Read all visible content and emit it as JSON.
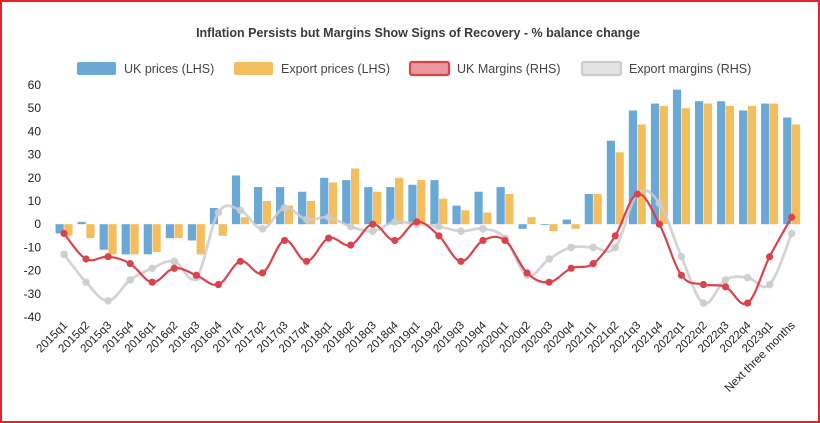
{
  "chart_data": {
    "type": "bar",
    "title": "Inflation Persists but Margins Show Signs of Recovery - % balance change",
    "categories": [
      "2015q1",
      "2015q2",
      "2015q3",
      "2015q4",
      "2016q1",
      "2016q2",
      "2016q3",
      "2016q4",
      "2017q1",
      "2017q2",
      "2017q3",
      "2017q4",
      "2018q1",
      "2018q2",
      "2018q3",
      "2018q4",
      "2019q1",
      "2019q2",
      "2019q3",
      "2019q4",
      "2020q1",
      "2020q2",
      "2020q3",
      "2020q4",
      "2021q1",
      "2021q2",
      "2021q3",
      "2021q4",
      "2022q1",
      "2022q2",
      "2022q3",
      "2022q4",
      "2023q1",
      "Next three months"
    ],
    "x_tick_labels": [
      "2015q1",
      "2015q2",
      "2015q3",
      "2015q4",
      "2016q1",
      "2016q2",
      "2016q3",
      "2016q4",
      "2017q1",
      "2017q2",
      "2017q3",
      "2017q4",
      "2018q1",
      "2018q2",
      "2018q3",
      "2018q4",
      "2019q1",
      "2019q2",
      "2019q3",
      "2019q4",
      "2020q1",
      "2020q2",
      "2020q3",
      "2020q4",
      "2021q1",
      "2021q2",
      "2021q3",
      "2021q4",
      "2022q1",
      "2022q2",
      "2022q3",
      "2022q4",
      "2023q1",
      "Next three months"
    ],
    "ylim": [
      -40,
      60
    ],
    "yticks": [
      -40,
      -30,
      -20,
      -10,
      0,
      10,
      20,
      30,
      40,
      50,
      60
    ],
    "grid": false,
    "legend_position": "top",
    "series": [
      {
        "name": "UK prices (LHS)",
        "kind": "bar",
        "color": "#6aa8d6",
        "values": [
          -4,
          1,
          -11,
          -13,
          -13,
          -6,
          -7,
          7,
          21,
          16,
          16,
          14,
          20,
          19,
          16,
          16,
          17,
          19,
          8,
          14,
          16,
          -2,
          0,
          2,
          13,
          36,
          49,
          52,
          58,
          53,
          53,
          49,
          52,
          46
        ]
      },
      {
        "name": "Export prices (LHS)",
        "kind": "bar",
        "color": "#f4bd5e",
        "values": [
          -5,
          -6,
          -13,
          -13,
          -12,
          -6,
          -13,
          -5,
          3,
          10,
          8,
          10,
          18,
          24,
          14,
          20,
          19,
          11,
          6,
          5,
          13,
          3,
          -3,
          -2,
          13,
          31,
          43,
          51,
          50,
          52,
          51,
          51,
          52,
          43
        ]
      },
      {
        "name": "UK Margins (RHS)",
        "kind": "line",
        "color": "#d9434c",
        "values": [
          -4,
          -15,
          -14,
          -17,
          -25,
          -19,
          -22,
          -26,
          -16,
          -21,
          -7,
          -16,
          -6,
          -9,
          0,
          -7,
          1,
          -5,
          -16,
          -7,
          -7,
          -21,
          -25,
          -19,
          -17,
          -5,
          13,
          0,
          -22,
          -26,
          -27,
          -34,
          -14,
          3
        ]
      },
      {
        "name": "Export margins (RHS)",
        "kind": "line",
        "color": "#cccccc",
        "values": [
          -13,
          -25,
          -33,
          -24,
          -19,
          -16,
          -23,
          5,
          6,
          -2,
          7,
          2,
          3,
          -1,
          -3,
          1,
          0,
          -1,
          -3,
          -2,
          -6,
          -22,
          -15,
          -10,
          -10,
          -10,
          13,
          9,
          -14,
          -34,
          -24,
          -23,
          -26,
          -4
        ]
      }
    ]
  }
}
